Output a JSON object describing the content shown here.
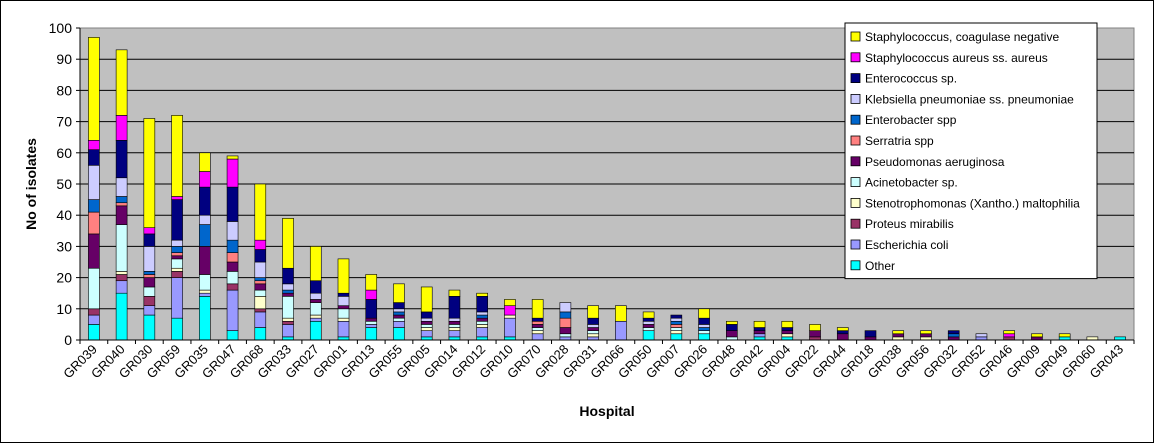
{
  "chart_data": {
    "type": "bar",
    "stacked": true,
    "xlabel": "Hospital",
    "ylabel": "No of isolates",
    "ylim": [
      0,
      100
    ],
    "yticks": [
      0,
      10,
      20,
      30,
      40,
      50,
      60,
      70,
      80,
      90,
      100
    ],
    "grid": true,
    "legend_position": "top-right",
    "categories": [
      "GR039",
      "GR040",
      "GR030",
      "GR059",
      "GR035",
      "GR047",
      "GR068",
      "GR033",
      "GR027",
      "GR001",
      "GR013",
      "GR055",
      "GR005",
      "GR014",
      "GR012",
      "GR010",
      "GR070",
      "GR028",
      "GR031",
      "GR066",
      "GR050",
      "GR007",
      "GR026",
      "GR048",
      "GR042",
      "GR004",
      "GR022",
      "GR044",
      "GR018",
      "GR038",
      "GR056",
      "GR032",
      "GR052",
      "GR046",
      "GR009",
      "GR049",
      "GR060",
      "GR043"
    ],
    "series": [
      {
        "name": "Other",
        "color": "#00FFFF",
        "values": [
          5,
          15,
          8,
          7,
          14,
          3,
          4,
          1,
          6,
          1,
          4,
          4,
          1,
          1,
          1,
          1,
          0,
          0,
          0,
          0,
          3,
          2,
          2,
          0,
          1,
          1,
          0,
          0,
          0,
          0,
          0,
          0,
          0,
          0,
          0,
          1,
          0,
          1
        ]
      },
      {
        "name": "Escherichia coli",
        "color": "#9999FF",
        "values": [
          3,
          4,
          3,
          13,
          1,
          13,
          5,
          4,
          1,
          5,
          1,
          2,
          2,
          2,
          3,
          6,
          2,
          1,
          1,
          6,
          0,
          0,
          0,
          0,
          1,
          0,
          0,
          0,
          0,
          0,
          0,
          0,
          1,
          0,
          0,
          0,
          0,
          0
        ]
      },
      {
        "name": "Proteus mirabilis",
        "color": "#993366",
        "values": [
          2,
          2,
          3,
          2,
          0,
          2,
          1,
          1,
          0,
          0,
          0,
          0,
          0,
          0,
          0,
          0,
          0,
          0,
          0,
          0,
          0,
          0,
          0,
          0,
          0,
          0,
          1,
          0,
          0,
          0,
          0,
          0,
          0,
          1,
          0,
          0,
          0,
          0
        ]
      },
      {
        "name": "Stenotrophomonas (Xantho.) maltophilia",
        "color": "#FFFFCC",
        "values": [
          0,
          1,
          0,
          1,
          1,
          0,
          4,
          1,
          1,
          1,
          0,
          0,
          1,
          1,
          1,
          1,
          1,
          0,
          1,
          0,
          0,
          1,
          0,
          0,
          0,
          1,
          0,
          0,
          0,
          1,
          1,
          0,
          0,
          0,
          0,
          0,
          1,
          0
        ]
      },
      {
        "name": "Acinetobacter sp.",
        "color": "#CCFFFF",
        "values": [
          13,
          15,
          3,
          3,
          5,
          4,
          2,
          7,
          4,
          3,
          1,
          1,
          1,
          1,
          1,
          0,
          1,
          1,
          1,
          0,
          1,
          1,
          1,
          1,
          0,
          0,
          0,
          0,
          0,
          0,
          0,
          0,
          0,
          0,
          0,
          0,
          0,
          0
        ]
      },
      {
        "name": "Pseudomonas aeruginosa",
        "color": "#660066",
        "values": [
          11,
          6,
          3,
          1,
          9,
          3,
          2,
          1,
          1,
          1,
          1,
          1,
          1,
          1,
          1,
          0,
          1,
          2,
          1,
          0,
          1,
          0,
          0,
          2,
          1,
          1,
          2,
          2,
          1,
          1,
          1,
          1,
          0,
          0,
          1,
          0,
          0,
          0
        ]
      },
      {
        "name": "Serratria spp",
        "color": "#FF8080",
        "values": [
          7,
          1,
          1,
          1,
          0,
          3,
          1,
          0,
          0,
          0,
          0,
          0,
          0,
          0,
          0,
          0,
          1,
          3,
          0,
          0,
          0,
          1,
          0,
          0,
          0,
          0,
          0,
          0,
          0,
          0,
          0,
          0,
          0,
          0,
          0,
          0,
          0,
          0
        ]
      },
      {
        "name": "Enterobacter spp",
        "color": "#0066CC",
        "values": [
          4,
          2,
          1,
          2,
          7,
          4,
          1,
          1,
          0,
          0,
          0,
          1,
          0,
          0,
          1,
          0,
          0,
          2,
          0,
          0,
          0,
          1,
          1,
          0,
          0,
          0,
          0,
          0,
          0,
          0,
          0,
          1,
          0,
          0,
          0,
          0,
          0,
          0
        ]
      },
      {
        "name": "Klebsiella pneumoniae ss. pneumoniae",
        "color": "#CCCCFF",
        "values": [
          11,
          6,
          8,
          2,
          3,
          6,
          5,
          2,
          2,
          3,
          0,
          1,
          1,
          1,
          1,
          0,
          0,
          3,
          1,
          0,
          1,
          1,
          1,
          0,
          0,
          0,
          0,
          0,
          0,
          0,
          0,
          0,
          1,
          0,
          0,
          0,
          0,
          0
        ]
      },
      {
        "name": "Enterococcus sp.",
        "color": "#000080",
        "values": [
          5,
          12,
          4,
          13,
          9,
          11,
          4,
          5,
          4,
          1,
          6,
          2,
          2,
          7,
          5,
          0,
          1,
          0,
          2,
          0,
          1,
          1,
          2,
          2,
          1,
          1,
          0,
          1,
          2,
          0,
          0,
          1,
          0,
          0,
          0,
          0,
          0,
          0
        ]
      },
      {
        "name": "Staphylococcus aureus ss. aureus",
        "color": "#FF00FF",
        "values": [
          3,
          8,
          2,
          1,
          5,
          9,
          3,
          0,
          0,
          0,
          3,
          0,
          0,
          0,
          0,
          3,
          0,
          0,
          0,
          0,
          0,
          0,
          0,
          0,
          0,
          0,
          0,
          0,
          0,
          0,
          0,
          0,
          0,
          1,
          0,
          0,
          0,
          0
        ]
      },
      {
        "name": "Staphylococcus, coagulase negative",
        "color": "#FFFF00",
        "values": [
          33,
          21,
          35,
          26,
          6,
          1,
          18,
          16,
          11,
          11,
          5,
          6,
          8,
          2,
          1,
          2,
          6,
          0,
          4,
          5,
          2,
          0,
          3,
          1,
          2,
          2,
          2,
          1,
          0,
          1,
          1,
          0,
          0,
          1,
          1,
          1,
          0,
          0
        ]
      }
    ]
  }
}
